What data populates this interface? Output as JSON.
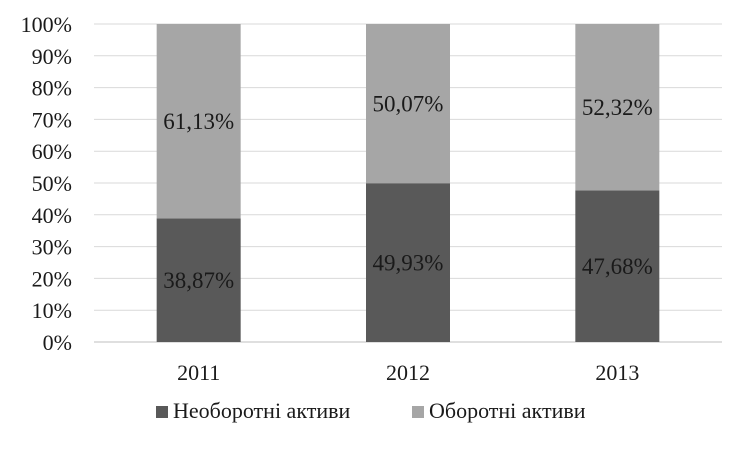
{
  "chart_data": {
    "type": "bar",
    "stacked": "percent",
    "categories": [
      "2011",
      "2012",
      "2013"
    ],
    "series": [
      {
        "name": "Необоротні активи",
        "values": [
          38.87,
          49.93,
          47.68
        ],
        "labels": [
          "38,87%",
          "49,93%",
          "47,68%"
        ],
        "color": "#595959"
      },
      {
        "name": "Оборотні активи",
        "values": [
          61.13,
          50.07,
          52.32
        ],
        "labels": [
          "61,13%",
          "50,07%",
          "52,32%"
        ],
        "color": "#a6a6a6"
      }
    ],
    "yticks": [
      "0%",
      "10%",
      "20%",
      "30%",
      "40%",
      "50%",
      "60%",
      "70%",
      "80%",
      "90%",
      "100%"
    ],
    "ylim": [
      0,
      100
    ],
    "grid": true,
    "legend_position": "bottom"
  }
}
